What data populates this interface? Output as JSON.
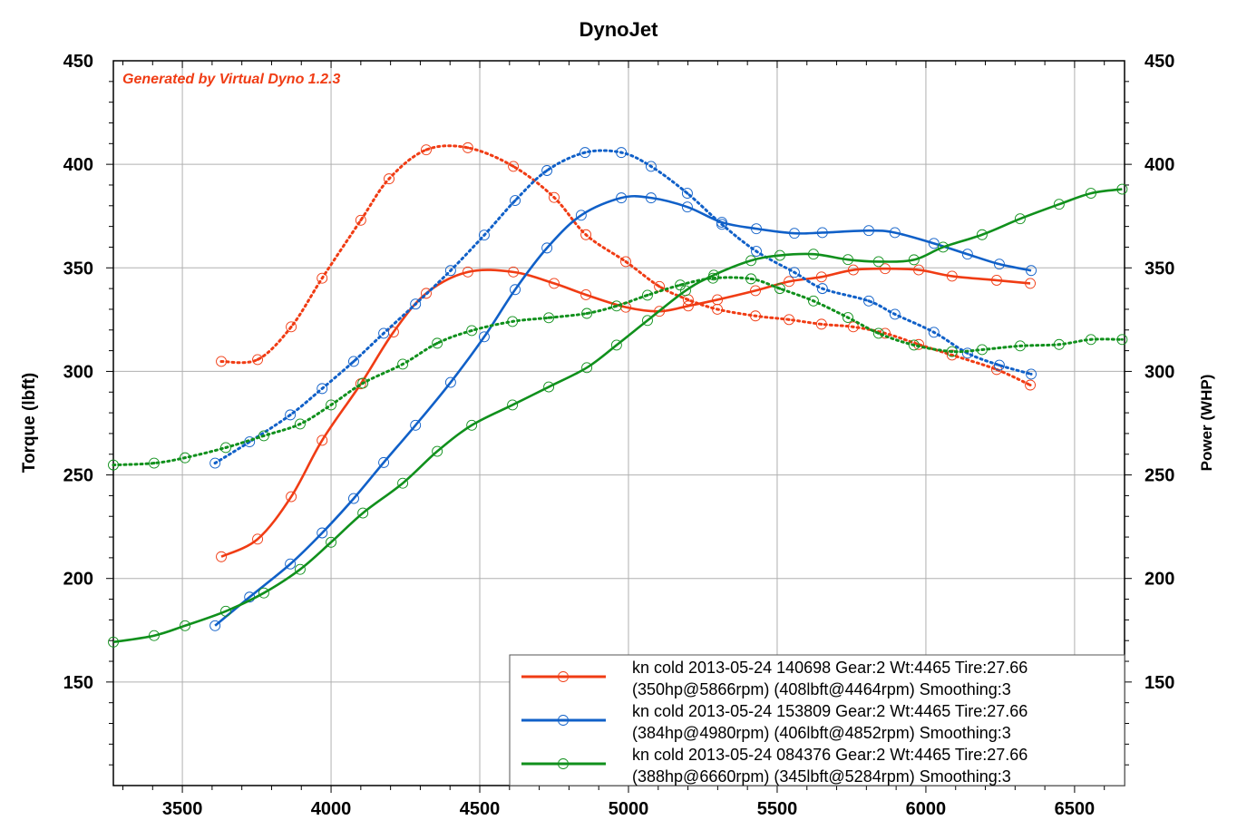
{
  "chart_data": {
    "type": "line",
    "title": "DynoJet",
    "watermark": "Generated by Virtual Dyno 1.2.3",
    "xlabel": "",
    "ylabel_left": "Torque (lbft)",
    "ylabel_right": "Power (WHP)",
    "xlim": [
      3268,
      6668
    ],
    "ylim": [
      100,
      450
    ],
    "x_ticks": [
      3500,
      4000,
      4500,
      5000,
      5500,
      6000,
      6500
    ],
    "y_ticks": [
      150,
      200,
      250,
      300,
      350,
      400,
      450
    ],
    "grid": true,
    "legend_position": "bottom-right",
    "runs": [
      {
        "color": "#f03c14",
        "legend_line1": "kn cold 2013-05-24 140698 Gear:2 Wt:4465 Tire:27.66",
        "legend_line2": "(350hp@5866rpm) (408lbft@4464rpm) Smoothing:3",
        "power_whp": [
          [
            3631,
            210.5
          ],
          [
            3753,
            219
          ],
          [
            3866,
            239.5
          ],
          [
            3970,
            266.7
          ],
          [
            4100,
            294
          ],
          [
            4210,
            319
          ],
          [
            4320,
            337.7
          ],
          [
            4460,
            348
          ],
          [
            4613,
            348
          ],
          [
            4750,
            342.5
          ],
          [
            4857,
            337
          ],
          [
            4991,
            331
          ],
          [
            5104,
            329
          ],
          [
            5201,
            331.6
          ],
          [
            5299,
            334.6
          ],
          [
            5427,
            339
          ],
          [
            5540,
            343.4
          ],
          [
            5649,
            345.6
          ],
          [
            5756,
            349
          ],
          [
            5863,
            349.6
          ],
          [
            5976,
            349
          ],
          [
            6088,
            346
          ],
          [
            6238,
            344
          ],
          [
            6351,
            342.5
          ]
        ],
        "torque_lbft": [
          [
            3631,
            304.8
          ],
          [
            3753,
            305.7
          ],
          [
            3866,
            321.5
          ],
          [
            3970,
            345
          ],
          [
            4100,
            373
          ],
          [
            4195,
            393
          ],
          [
            4320,
            407
          ],
          [
            4460,
            408
          ],
          [
            4613,
            399
          ],
          [
            4750,
            384
          ],
          [
            4857,
            366
          ],
          [
            4991,
            353
          ],
          [
            5104,
            341
          ],
          [
            5201,
            334.6
          ],
          [
            5299,
            330
          ],
          [
            5427,
            326.8
          ],
          [
            5540,
            325
          ],
          [
            5649,
            322.8
          ],
          [
            5756,
            321.5
          ],
          [
            5863,
            318.4
          ],
          [
            5976,
            313
          ],
          [
            6088,
            307.9
          ],
          [
            6238,
            300.9
          ],
          [
            6351,
            293.4
          ]
        ]
      },
      {
        "color": "#1060c8",
        "legend_line1": "kn cold 2013-05-24 153809 Gear:2 Wt:4465 Tire:27.66",
        "legend_line2": "(384hp@4980rpm) (406lbft@4852rpm) Smoothing:3",
        "power_whp": [
          [
            3610,
            177.2
          ],
          [
            3726,
            191
          ],
          [
            3863,
            207
          ],
          [
            3970,
            222
          ],
          [
            4076,
            238.6
          ],
          [
            4177,
            256
          ],
          [
            4284,
            274
          ],
          [
            4402,
            294.7
          ],
          [
            4515,
            316.7
          ],
          [
            4619,
            339.5
          ],
          [
            4726,
            359.6
          ],
          [
            4841,
            375.4
          ],
          [
            4976,
            383.8
          ],
          [
            5076,
            383.8
          ],
          [
            5198,
            379.4
          ],
          [
            5314,
            372
          ],
          [
            5430,
            368.9
          ],
          [
            5558,
            366.7
          ],
          [
            5652,
            367
          ],
          [
            5808,
            368
          ],
          [
            5896,
            367
          ],
          [
            6027,
            361.8
          ],
          [
            6140,
            356.6
          ],
          [
            6247,
            351.8
          ],
          [
            6354,
            348.7
          ]
        ],
        "torque_lbft": [
          [
            3610,
            255.7
          ],
          [
            3726,
            266
          ],
          [
            3863,
            279
          ],
          [
            3970,
            291.7
          ],
          [
            4076,
            304.8
          ],
          [
            4177,
            318.4
          ],
          [
            4284,
            332.5
          ],
          [
            4402,
            348.7
          ],
          [
            4515,
            365.8
          ],
          [
            4619,
            382.5
          ],
          [
            4726,
            397
          ],
          [
            4854,
            405.7
          ],
          [
            4976,
            405.7
          ],
          [
            5076,
            399
          ],
          [
            5198,
            386
          ],
          [
            5314,
            371
          ],
          [
            5430,
            358
          ],
          [
            5558,
            347.8
          ],
          [
            5652,
            340
          ],
          [
            5808,
            334
          ],
          [
            5896,
            327.6
          ],
          [
            6027,
            318.9
          ],
          [
            6140,
            308.8
          ],
          [
            6247,
            303
          ],
          [
            6354,
            298.7
          ]
        ]
      },
      {
        "color": "#10901c",
        "legend_line1": "kn cold 2013-05-24 084376 Gear:2 Wt:4465 Tire:27.66",
        "legend_line2": "(388hp@6660rpm) (345lbft@5284rpm) Smoothing:3",
        "power_whp": [
          [
            3268,
            169.3
          ],
          [
            3405,
            172.4
          ],
          [
            3509,
            177.2
          ],
          [
            3646,
            184.2
          ],
          [
            3774,
            193
          ],
          [
            3896,
            204.4
          ],
          [
            4000,
            217.5
          ],
          [
            4107,
            231.6
          ],
          [
            4241,
            246
          ],
          [
            4357,
            261.4
          ],
          [
            4473,
            274
          ],
          [
            4610,
            283.8
          ],
          [
            4732,
            292.5
          ],
          [
            4860,
            301.8
          ],
          [
            4960,
            312.7
          ],
          [
            5064,
            324.6
          ],
          [
            5192,
            339
          ],
          [
            5287,
            346.5
          ],
          [
            5412,
            353.5
          ],
          [
            5509,
            356
          ],
          [
            5622,
            356.6
          ],
          [
            5738,
            354
          ],
          [
            5841,
            353
          ],
          [
            5960,
            353.9
          ],
          [
            6058,
            360
          ],
          [
            6189,
            366
          ],
          [
            6317,
            373.7
          ],
          [
            6448,
            380.7
          ],
          [
            6555,
            386
          ],
          [
            6660,
            388
          ]
        ],
        "torque_lbft": [
          [
            3268,
            254.8
          ],
          [
            3405,
            255.7
          ],
          [
            3509,
            258.3
          ],
          [
            3646,
            263.2
          ],
          [
            3774,
            268.9
          ],
          [
            3896,
            274.6
          ],
          [
            4000,
            283.8
          ],
          [
            4107,
            294.3
          ],
          [
            4241,
            303.5
          ],
          [
            4357,
            313.6
          ],
          [
            4473,
            319.7
          ],
          [
            4610,
            324.1
          ],
          [
            4732,
            325.9
          ],
          [
            4860,
            328
          ],
          [
            4960,
            331.6
          ],
          [
            5064,
            336.8
          ],
          [
            5174,
            341.7
          ],
          [
            5284,
            345
          ],
          [
            5412,
            344.7
          ],
          [
            5509,
            340
          ],
          [
            5622,
            334
          ],
          [
            5738,
            326
          ],
          [
            5841,
            318.4
          ],
          [
            5960,
            312.7
          ],
          [
            6088,
            309.6
          ],
          [
            6189,
            310.5
          ],
          [
            6317,
            312.3
          ],
          [
            6448,
            313
          ],
          [
            6555,
            315.4
          ],
          [
            6660,
            315.4
          ]
        ]
      }
    ]
  }
}
